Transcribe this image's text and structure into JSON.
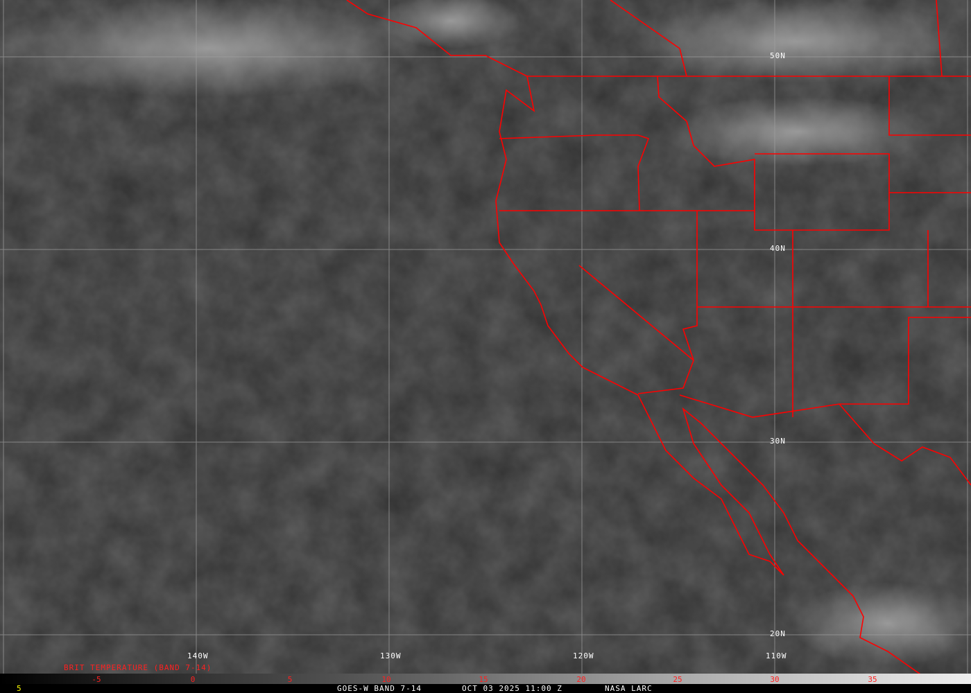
{
  "map": {
    "longitude_labels": [
      "140W",
      "130W",
      "120W",
      "110W"
    ],
    "latitude_labels": [
      "50N",
      "40N",
      "30N",
      "20N"
    ],
    "boundary_color": "#ff0000",
    "grid_color": "#a0a0a0"
  },
  "colorbar": {
    "title": "BRIT TEMPERATURE (BAND 7-14)",
    "ticks": [
      "-5",
      "0",
      "5",
      "10",
      "15",
      "20",
      "25",
      "30",
      "35"
    ],
    "scale_left": "5"
  },
  "footer": {
    "satellite": "GOES-W BAND 7-14",
    "datetime": "OCT 03 2025 11:00 Z",
    "source": "NASA LARC"
  }
}
